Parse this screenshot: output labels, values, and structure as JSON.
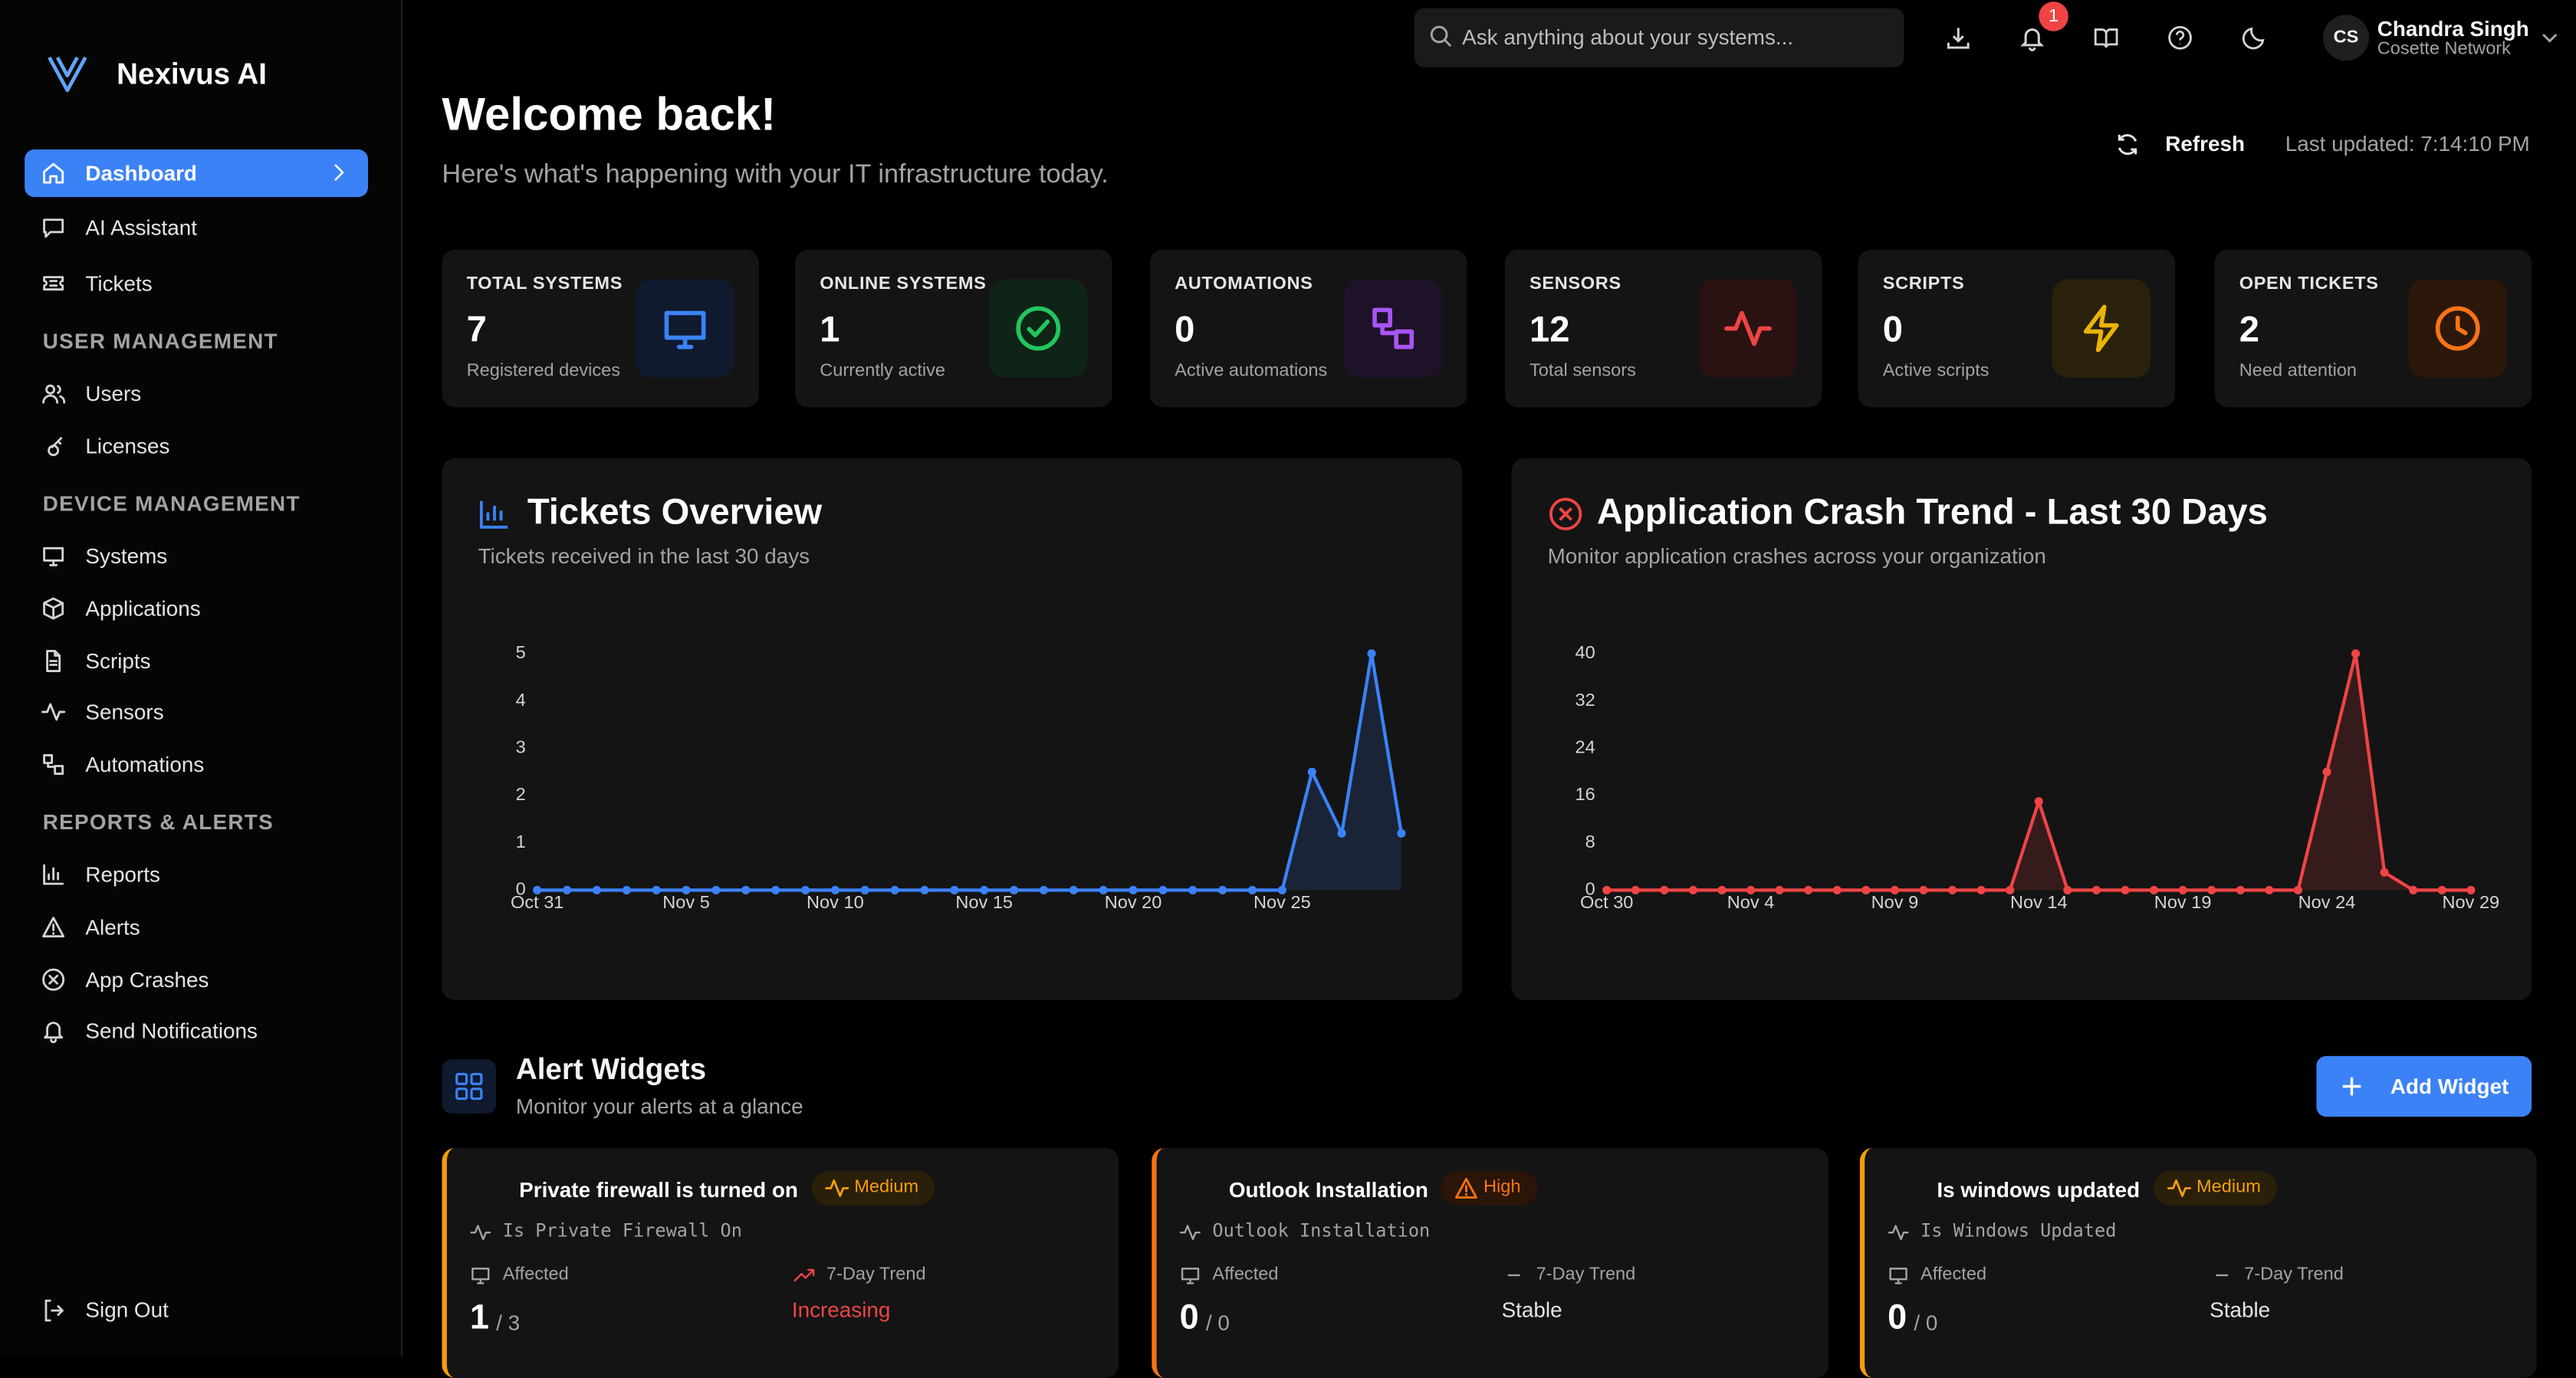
{
  "sidebar": {
    "brand": "Nexivus AI",
    "main": [
      "Dashboard",
      "AI Assistant",
      "Tickets"
    ],
    "sections": [
      {
        "heading": "USER MANAGEMENT",
        "items": [
          "Users",
          "Licenses"
        ]
      },
      {
        "heading": "DEVICE MANAGEMENT",
        "items": [
          "Systems",
          "Applications",
          "Scripts",
          "Sensors",
          "Automations"
        ]
      },
      {
        "heading": "REPORTS & ALERTS",
        "items": [
          "Reports",
          "Alerts",
          "App Crashes",
          "Send Notifications"
        ]
      }
    ],
    "sign_out": "Sign Out"
  },
  "topbar": {
    "search_placeholder": "Ask anything about your systems...",
    "notification_count": 1,
    "user_initials": "CS",
    "user_name": "Chandra Singh",
    "user_org": "Cosette Network"
  },
  "header": {
    "title": "Welcome back!",
    "subtitle": "Here's what's happening with your IT infrastructure today.",
    "refresh": "Refresh",
    "last_updated": "Last updated: 7:14:10 PM"
  },
  "stats": [
    {
      "label": "TOTAL SYSTEMS",
      "value": 7,
      "caption": "Registered devices"
    },
    {
      "label": "ONLINE SYSTEMS",
      "value": 1,
      "caption": "Currently active"
    },
    {
      "label": "AUTOMATIONS",
      "value": 0,
      "caption": "Active automations"
    },
    {
      "label": "SENSORS",
      "value": 12,
      "caption": "Total sensors"
    },
    {
      "label": "SCRIPTS",
      "value": 0,
      "caption": "Active scripts"
    },
    {
      "label": "OPEN TICKETS",
      "value": 2,
      "caption": "Need attention"
    }
  ],
  "chart_data": [
    {
      "type": "line",
      "title": "Tickets Overview",
      "subtitle": "Tickets received in the last 30 days",
      "color": "#3b82f6",
      "categories": [
        "Oct 31",
        null,
        null,
        null,
        null,
        "Nov 5",
        null,
        null,
        null,
        null,
        "Nov 10",
        null,
        null,
        null,
        null,
        "Nov 15",
        null,
        null,
        null,
        null,
        "Nov 20",
        null,
        null,
        null,
        null,
        "Nov 25",
        null,
        null,
        null,
        null
      ],
      "values": [
        0,
        0,
        0,
        0,
        0,
        0,
        0,
        0,
        0,
        0,
        0,
        0,
        0,
        0,
        0,
        0,
        0,
        0,
        0,
        0,
        0,
        0,
        0,
        0,
        0,
        0,
        2.5,
        1.2,
        5,
        1.2
      ],
      "ylim": [
        0,
        5
      ],
      "yticks": [
        0,
        1,
        2,
        3,
        4,
        5
      ],
      "grid": false
    },
    {
      "type": "line",
      "title": "Application Crash Trend - Last 30 Days",
      "subtitle": "Monitor application crashes across your organization",
      "color": "#ef4444",
      "categories": [
        "Oct 30",
        null,
        null,
        null,
        null,
        "Nov 4",
        null,
        null,
        null,
        null,
        "Nov 9",
        null,
        null,
        null,
        null,
        "Nov 14",
        null,
        null,
        null,
        null,
        "Nov 19",
        null,
        null,
        null,
        null,
        "Nov 24",
        null,
        null,
        null,
        null,
        "Nov 29"
      ],
      "values": [
        0,
        0,
        0,
        0,
        0,
        0,
        0,
        0,
        0,
        0,
        0,
        0,
        0,
        0,
        0,
        15,
        0,
        0,
        0,
        0,
        0,
        0,
        0,
        0,
        0,
        20,
        40,
        3,
        0,
        0,
        0
      ],
      "ylim": [
        0,
        40
      ],
      "yticks": [
        0,
        8,
        16,
        24,
        32,
        40
      ],
      "grid": false
    }
  ],
  "alert_widgets": {
    "title": "Alert Widgets",
    "subtitle": "Monitor your alerts at a glance",
    "add_button": "Add Widget",
    "items": [
      {
        "title": "Private firewall is turned on",
        "severity": "Medium",
        "check": "Is Private Firewall On",
        "affected_label": "Affected",
        "affected": 1,
        "total": "/ 3",
        "trend_label": "7-Day Trend",
        "trend": "Increasing"
      },
      {
        "title": "Outlook Installation",
        "severity": "High",
        "check": "Outlook Installation",
        "affected_label": "Affected",
        "affected": 0,
        "total": "/ 0",
        "trend_label": "7-Day Trend",
        "trend": "Stable"
      },
      {
        "title": "Is windows updated",
        "severity": "Medium",
        "check": "Is Windows Updated",
        "affected_label": "Affected",
        "affected": 0,
        "total": "/ 0",
        "trend_label": "7-Day Trend",
        "trend": "Stable"
      }
    ]
  }
}
